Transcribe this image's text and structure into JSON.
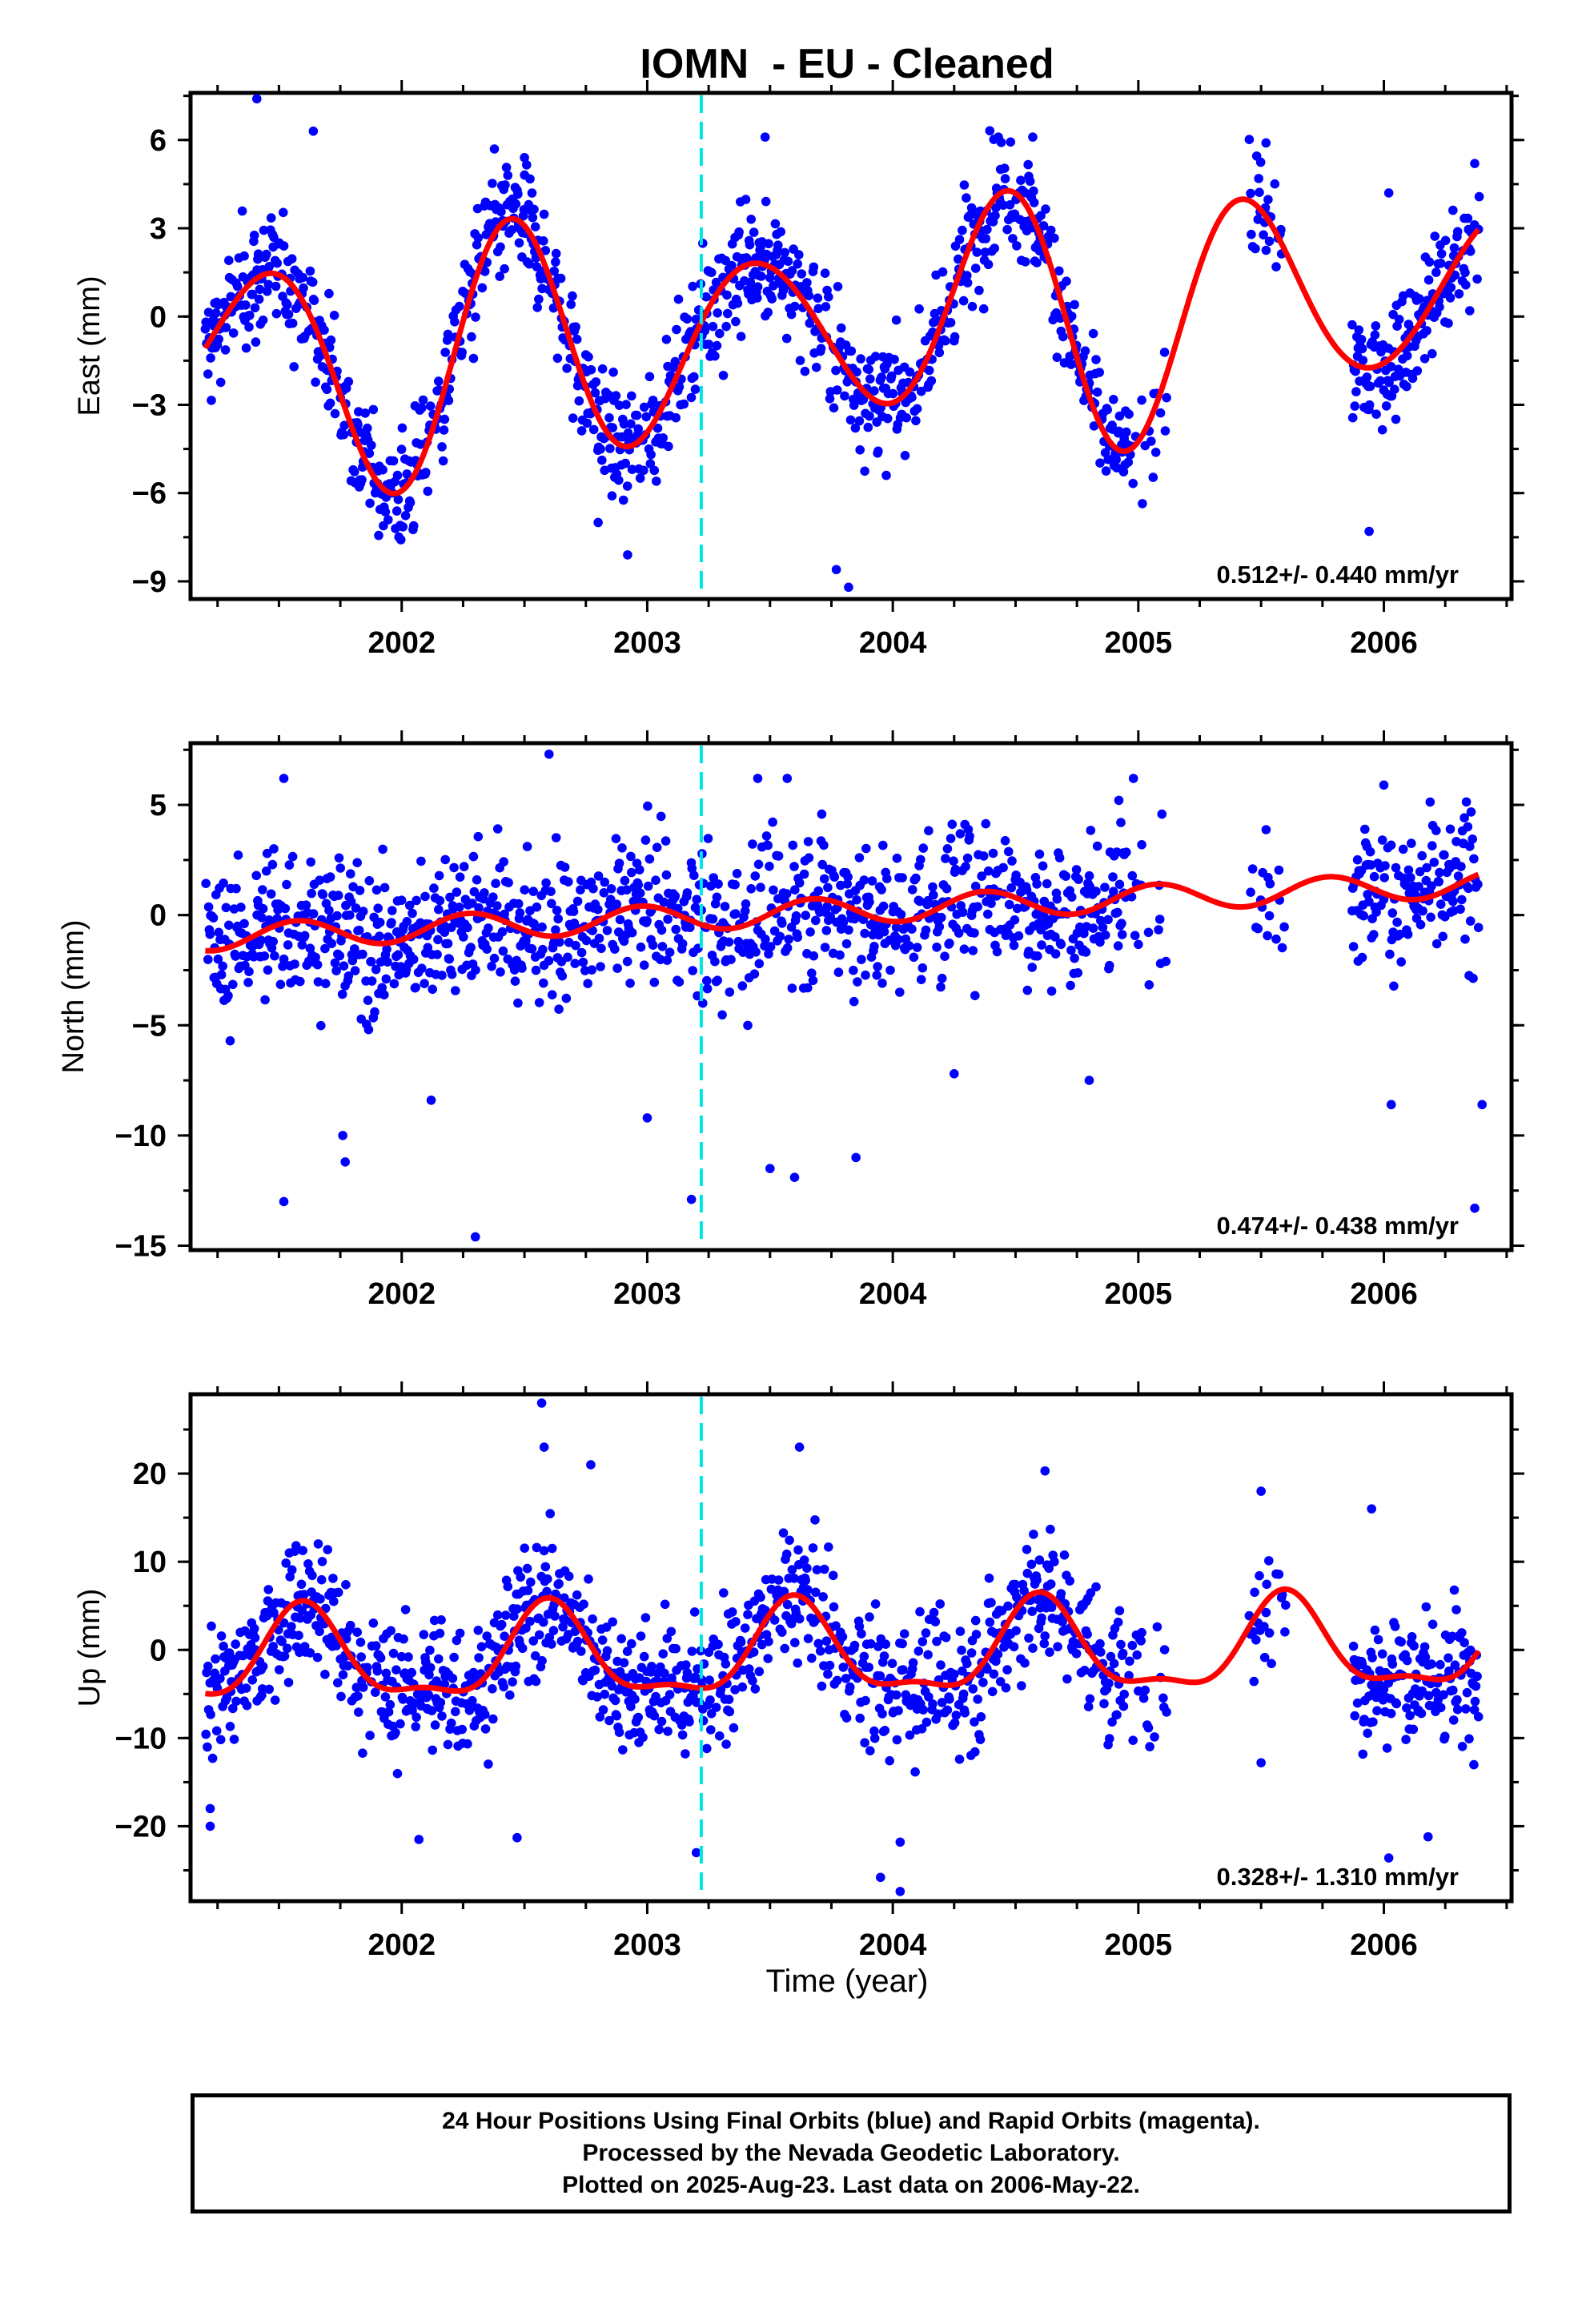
{
  "figure_title": "IOMN  - EU - Cleaned",
  "xlabel": "Time (year)",
  "footer": {
    "line1": "24 Hour Positions Using Final Orbits (blue) and Rapid Orbits (magenta).",
    "line2": "Processed by the Nevada Geodetic Laboratory.",
    "line3": "Plotted on 2025-Aug-23. Last data on 2006-May-22."
  },
  "colors": {
    "data_points": "#0000ff",
    "model_fit": "#ff0000",
    "event_line": "#00e5e5",
    "frame": "#000000"
  },
  "chart_data": [
    {
      "type": "scatter",
      "name": "east",
      "ylabel": "East (mm)",
      "rate_text": "0.512+/- 0.440 mm/yr",
      "xlim": [
        2001.14,
        2006.52
      ],
      "ylim": [
        -9.6,
        7.6
      ],
      "xticks": [
        2002,
        2003,
        2004,
        2005,
        2006
      ],
      "yticks": [
        -9,
        -6,
        -3,
        0,
        3,
        6
      ],
      "ytick_labels": [
        "−9",
        "−6",
        "−3",
        "0",
        "3",
        "6"
      ],
      "event_line_x": 2003.22,
      "gaps": [
        [
          2005.12,
          2005.45
        ],
        [
          2005.6,
          2005.87
        ]
      ],
      "model": {
        "offset": -0.4,
        "trend": 0.512,
        "ref_year": 2003.8,
        "harmonics": [
          {
            "amp": 3.5,
            "period": 1.0,
            "phase": 2001.2
          }
        ],
        "modulation": [
          {
            "amp": 0.4,
            "period": 2.5,
            "phase": 2001.7
          }
        ]
      },
      "scatter_sigma": 1.0,
      "outliers": [
        [
          2001.41,
          7.4
        ],
        [
          2001.64,
          6.3
        ],
        [
          2002.5,
          5.4
        ],
        [
          2003.48,
          6.1
        ],
        [
          2003.82,
          -9.2
        ],
        [
          2003.31,
          -2.0
        ],
        [
          2004.43,
          6.1
        ],
        [
          2004.57,
          6.1
        ],
        [
          2005.52,
          5.9
        ],
        [
          2005.94,
          -7.3
        ],
        [
          2006.02,
          4.2
        ],
        [
          2006.37,
          5.2
        ],
        [
          2002.92,
          -8.1
        ],
        [
          2003.77,
          -8.6
        ],
        [
          2002.8,
          -7.0
        ]
      ]
    },
    {
      "type": "scatter",
      "name": "north",
      "ylabel": "North (mm)",
      "rate_text": "0.474+/- 0.438 mm/yr",
      "xlim": [
        2001.14,
        2006.52
      ],
      "ylim": [
        -15.2,
        7.8
      ],
      "xticks": [
        2002,
        2003,
        2004,
        2005,
        2006
      ],
      "yticks": [
        -15,
        -10,
        -5,
        0,
        5
      ],
      "ytick_labels": [
        "−15",
        "−10",
        "−5",
        "0",
        "5"
      ],
      "event_line_x": 2003.22,
      "gaps": [
        [
          2005.12,
          2005.45
        ],
        [
          2005.6,
          2005.87
        ]
      ],
      "model": {
        "offset": 0.2,
        "trend": 0.474,
        "ref_year": 2003.8,
        "harmonics": [
          {
            "amp": 0.6,
            "period": 0.7,
            "phase": 2001.4
          }
        ],
        "modulation": []
      },
      "scatter_sigma": 1.7,
      "outliers": [
        [
          2001.52,
          -13.0
        ],
        [
          2001.77,
          -11.2
        ],
        [
          2001.76,
          -10.0
        ],
        [
          2002.12,
          -8.4
        ],
        [
          2002.3,
          -14.6
        ],
        [
          2002.6,
          7.3
        ],
        [
          2003.0,
          -9.2
        ],
        [
          2003.18,
          -12.9
        ],
        [
          2003.5,
          -11.5
        ],
        [
          2003.6,
          -11.9
        ],
        [
          2003.85,
          -11.0
        ],
        [
          2004.25,
          -7.2
        ],
        [
          2004.8,
          -7.5
        ],
        [
          2004.98,
          6.2
        ],
        [
          2006.03,
          -8.6
        ],
        [
          2006.37,
          -13.3
        ],
        [
          2006.4,
          -8.6
        ],
        [
          2001.52,
          6.2
        ],
        [
          2003.45,
          6.2
        ],
        [
          2003.57,
          6.2
        ],
        [
          2006.0,
          5.9
        ]
      ]
    },
    {
      "type": "scatter",
      "name": "up",
      "ylabel": "Up (mm)",
      "rate_text": "0.328+/- 1.310 mm/yr",
      "xlim": [
        2001.14,
        2006.52
      ],
      "ylim": [
        -28.5,
        29.0
      ],
      "xticks": [
        2002,
        2003,
        2004,
        2005,
        2006
      ],
      "yticks": [
        -20,
        -10,
        0,
        10,
        20
      ],
      "ytick_labels": [
        "−20",
        "−10",
        "0",
        "10",
        "20"
      ],
      "event_line_x": 2003.22,
      "gaps": [
        [
          2005.12,
          2005.45
        ],
        [
          2005.6,
          2005.87
        ]
      ],
      "model": {
        "offset": -0.5,
        "trend": 0.328,
        "ref_year": 2003.8,
        "harmonics": [
          {
            "amp": 5.0,
            "period": 1.0,
            "phase": 2001.35
          },
          {
            "amp": 1.8,
            "period": 0.5,
            "phase": 2001.47
          }
        ],
        "modulation": []
      },
      "scatter_sigma": 3.8,
      "outliers": [
        [
          2002.57,
          28.0
        ],
        [
          2002.58,
          23.0
        ],
        [
          2002.77,
          21.0
        ],
        [
          2003.62,
          23.0
        ],
        [
          2004.62,
          20.3
        ],
        [
          2005.5,
          18.0
        ],
        [
          2002.07,
          -21.5
        ],
        [
          2002.47,
          -21.3
        ],
        [
          2003.95,
          -25.8
        ],
        [
          2004.03,
          -27.4
        ],
        [
          2004.03,
          -21.8
        ],
        [
          2006.02,
          -23.6
        ],
        [
          2006.18,
          -21.2
        ],
        [
          2001.22,
          -18.0
        ],
        [
          2001.22,
          -20.0
        ],
        [
          2005.95,
          16.0
        ],
        [
          2003.2,
          -23.0
        ],
        [
          2005.5,
          -12.8
        ]
      ]
    }
  ]
}
